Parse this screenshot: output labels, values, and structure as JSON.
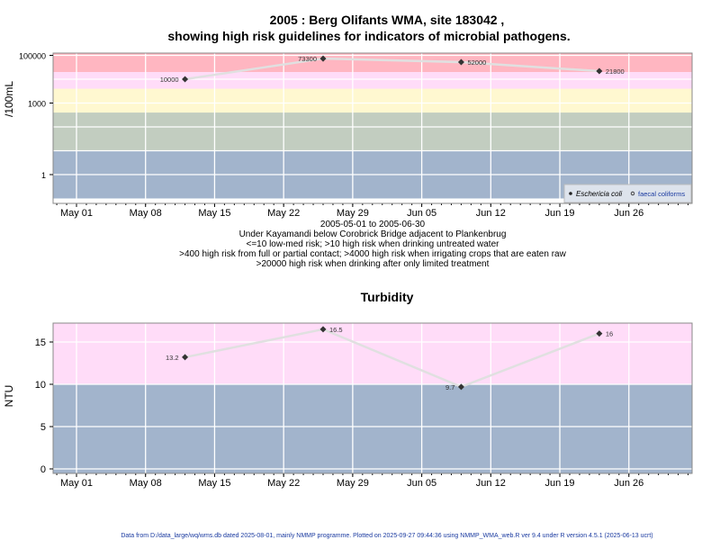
{
  "title_line1": "2005 : Berg Olifants WMA, site 183042 ,",
  "title_line2": "showing high risk guidelines for indicators of microbial pathogens.",
  "colors": {
    "red": "#ffb6c1",
    "pink": "#ffdcf8",
    "yellow": "#fff8d0",
    "green": "#c2cdc0",
    "blue": "#a2b4cc",
    "line": "#e0e0e0",
    "point": "#333333"
  },
  "chart_data": [
    {
      "type": "line",
      "title": "",
      "ylabel": "/100mL",
      "yscale": "log",
      "ylim": [
        0.1,
        140000
      ],
      "yticks": [
        1,
        1000,
        100000
      ],
      "ytick_labels": [
        "1",
        "1000",
        "100000"
      ],
      "xlim": [
        "2005-04-28.6",
        "2005-07-02.4"
      ],
      "xtick_labels": [
        "May 01",
        "May 08",
        "May 15",
        "May 22",
        "May 29",
        "Jun 05",
        "Jun 12",
        "Jun 19",
        "Jun 26"
      ],
      "xlabel_lines": [
        "2005-05-01 to 2005-06-30",
        "Under Kayamandi below Corobrick Bridge adjacent to Plankenbrug",
        "<=10 low-med risk; >10 high risk when drinking untreated water",
        ">400 high risk from full or partial contact; >4000 high risk when irrigating crops that are eaten raw",
        ">20000 high risk when drinking after only limited treatment"
      ],
      "bands": [
        {
          "from": 0.1,
          "to": 10,
          "color": "blue"
        },
        {
          "from": 10,
          "to": 400,
          "color": "green"
        },
        {
          "from": 400,
          "to": 4000,
          "color": "yellow"
        },
        {
          "from": 4000,
          "to": 20000,
          "color": "pink"
        },
        {
          "from": 20000,
          "to": 140000,
          "color": "red"
        }
      ],
      "series": [
        {
          "name": "Eschericia coli",
          "x": [
            "2005-05-12",
            "2005-05-26",
            "2005-06-09",
            "2005-06-23"
          ],
          "y": [
            10000,
            73300,
            52000,
            21800
          ],
          "labels": [
            "10000",
            "73300",
            "52000",
            "21800"
          ]
        }
      ],
      "legend": {
        "placement": "bottom-right",
        "entries": [
          "Eschericia coli",
          "faecal coliforms"
        ]
      }
    },
    {
      "type": "line",
      "title": "Turbidity",
      "ylabel": "NTU",
      "yscale": "linear",
      "ylim": [
        -0.5,
        17.2
      ],
      "yticks": [
        0,
        5,
        10,
        15
      ],
      "ytick_labels": [
        "0",
        "5",
        "10",
        "15"
      ],
      "xlim": [
        "2005-04-28.6",
        "2005-07-02.4"
      ],
      "xtick_labels": [
        "May 01",
        "May 08",
        "May 15",
        "May 22",
        "May 29",
        "Jun 05",
        "Jun 12",
        "Jun 19",
        "Jun 26"
      ],
      "bands": [
        {
          "from": -0.5,
          "to": 10,
          "color": "blue"
        },
        {
          "from": 10,
          "to": 17.2,
          "color": "pink"
        }
      ],
      "series": [
        {
          "name": "Turbidity",
          "x": [
            "2005-05-12",
            "2005-05-26",
            "2005-06-09",
            "2005-06-23"
          ],
          "y": [
            13.2,
            16.5,
            9.7,
            16
          ],
          "labels": [
            "13.2",
            "16.5",
            "9.7",
            "16"
          ]
        }
      ]
    }
  ],
  "footer": "Data from D:/data_large/wq/wms.db dated 2025-08-01, mainly NMMP programme. Plotted on 2025-09-27 09:44:36 using NMMP_WMA_web.R ver 9.4 under R version 4.5.1 (2025-06-13 ucrt)"
}
